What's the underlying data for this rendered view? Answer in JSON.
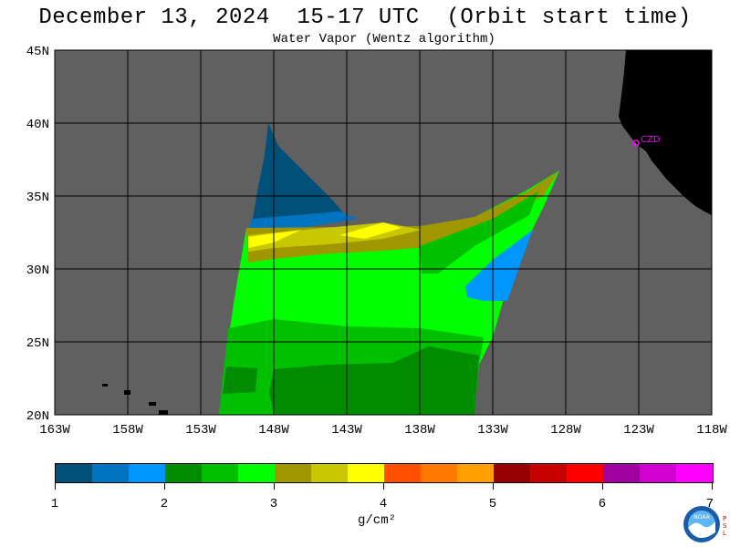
{
  "header": {
    "title": "December 13, 2024  15-17 UTC  (Orbit start time)",
    "subtitle": "Water Vapor (Wentz algorithm)"
  },
  "map": {
    "lat_labels": [
      "45N",
      "40N",
      "35N",
      "30N",
      "25N",
      "20N"
    ],
    "lat_values": [
      45,
      40,
      35,
      30,
      25,
      20
    ],
    "lon_labels": [
      "163W",
      "158W",
      "153W",
      "148W",
      "143W",
      "138W",
      "133W",
      "128W",
      "123W",
      "118W"
    ],
    "lon_values": [
      -163,
      -158,
      -153,
      -148,
      -143,
      -138,
      -133,
      -128,
      -123,
      -118
    ],
    "station_label": "CZD",
    "no_data_color": "#606060",
    "land_color": "#000000",
    "grid_color": "#000000"
  },
  "colorbar": {
    "colors": [
      "#00507a",
      "#0074c0",
      "#0096ff",
      "#008c00",
      "#00c000",
      "#00ff00",
      "#a09600",
      "#c8c800",
      "#ffff00",
      "#ff5000",
      "#ff7800",
      "#ffa000",
      "#960000",
      "#c80000",
      "#ff0000",
      "#a000a0",
      "#d200d2",
      "#ff00ff"
    ],
    "tick_labels": [
      "1",
      "2",
      "3",
      "4",
      "5",
      "6",
      "7"
    ],
    "units": "g/cm²"
  },
  "logo": {
    "name": "NOAA",
    "text": "NOAA",
    "side_letters": "PSL",
    "colors": {
      "outer": "#1a5aa6",
      "inner": "#5fb5ef",
      "bird": "#ffffff"
    }
  }
}
